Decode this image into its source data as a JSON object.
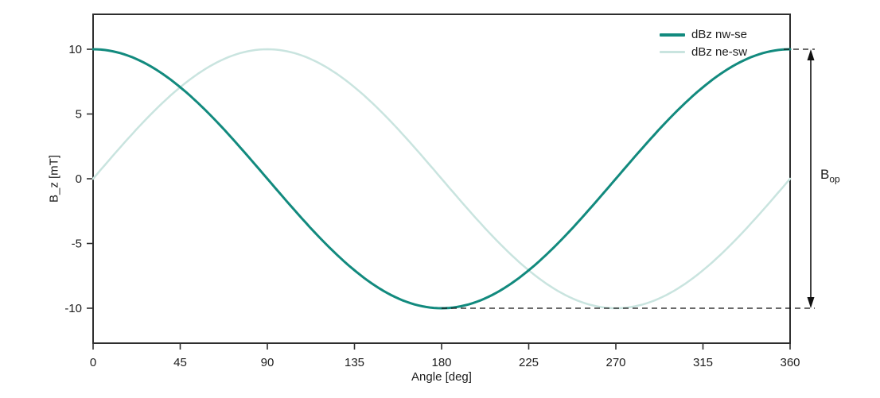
{
  "figure": {
    "background": "#ffffff",
    "text_color": "#1d1d1d",
    "axis_color": "#2e2e2e",
    "annotation_color": "#111111"
  },
  "chart_data": {
    "type": "line",
    "title": "",
    "xlabel": "Angle [deg]",
    "ylabel": "B_z [mT]",
    "xlim": [
      0,
      360
    ],
    "ylim": [
      -12.7,
      12.7
    ],
    "xticks": [
      0,
      45,
      90,
      135,
      180,
      225,
      270,
      315,
      360
    ],
    "yticks": [
      -10,
      -5,
      0,
      5,
      10
    ],
    "grid": false,
    "legend_position": "upper right",
    "x": [
      0,
      15,
      30,
      45,
      60,
      75,
      90,
      105,
      120,
      135,
      150,
      165,
      180,
      195,
      210,
      225,
      240,
      255,
      270,
      285,
      300,
      315,
      330,
      345,
      360
    ],
    "series": [
      {
        "name": "dBz nw-se",
        "color": "#128a7e",
        "line_width": 3,
        "model": {
          "kind": "cosine",
          "amplitude": 10,
          "phase_deg": 0
        },
        "values": [
          10,
          9.66,
          8.66,
          7.07,
          5,
          2.59,
          0,
          -2.59,
          -5,
          -7.07,
          -8.66,
          -9.66,
          -10,
          -9.66,
          -8.66,
          -7.07,
          -5,
          -2.59,
          0,
          2.59,
          5,
          7.07,
          8.66,
          9.66,
          10
        ]
      },
      {
        "name": "dBz ne-sw",
        "color": "#c9e4df",
        "line_width": 2.5,
        "model": {
          "kind": "cosine",
          "amplitude": 10,
          "phase_deg": 90
        },
        "values": [
          0,
          2.59,
          5,
          7.07,
          8.66,
          9.66,
          10,
          9.66,
          8.66,
          7.07,
          5,
          2.59,
          0,
          -2.59,
          -5,
          -7.07,
          -8.66,
          -9.66,
          -10,
          -9.66,
          -8.66,
          -7.07,
          -5,
          -2.59,
          0
        ]
      }
    ],
    "annotation": {
      "label": "B",
      "subscript": "op",
      "top_value": 10,
      "bottom_value": -10,
      "bottom_dash_start_deg": 180,
      "style": "double-headed arrow between dashed lines at +10 and -10 mT"
    }
  }
}
